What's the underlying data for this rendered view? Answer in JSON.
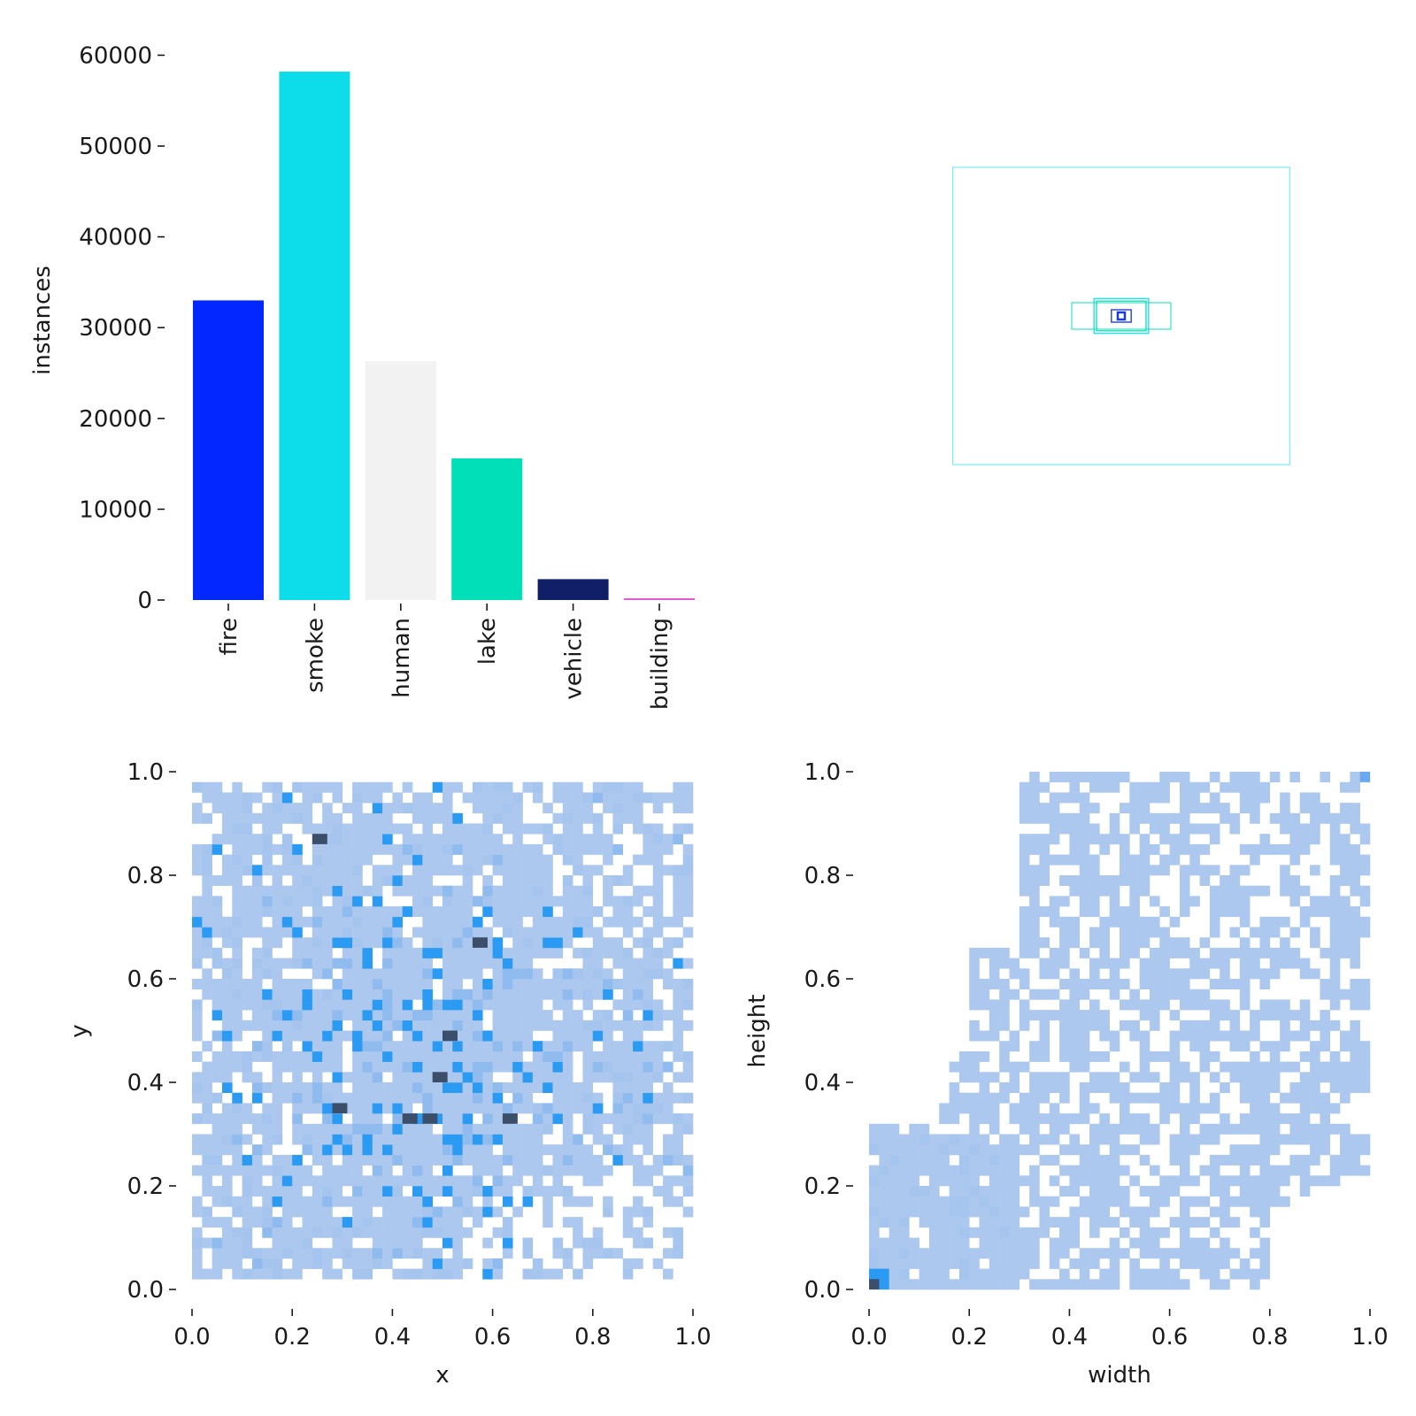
{
  "chart_data": [
    {
      "type": "bar",
      "ylabel": "instances",
      "categories": [
        "fire",
        "smoke",
        "human",
        "lake",
        "vehicle",
        "building"
      ],
      "values": [
        33000,
        58200,
        26300,
        15600,
        2300,
        150
      ],
      "colors": [
        "#0327ff",
        "#0ddcea",
        "#f2f2f2",
        "#00dfb7",
        "#111f68",
        "#e35bd4"
      ],
      "ylim": [
        0,
        62000
      ],
      "yticks": [
        0,
        10000,
        20000,
        30000,
        40000,
        50000,
        60000
      ]
    },
    {
      "type": "box-overlay",
      "description_colors": [
        "#0ddcea",
        "#00dfb7",
        "#0327ff",
        "#111f68"
      ],
      "boxes": [
        {
          "w": 0.68,
          "h": 0.6,
          "color": "#0ddcea"
        },
        {
          "w": 0.11,
          "h": 0.07,
          "color": "#0ddcea"
        },
        {
          "w": 0.1,
          "h": 0.06,
          "color": "#00dfb7"
        },
        {
          "w": 0.04,
          "h": 0.025,
          "color": "#0327ff"
        },
        {
          "w": 0.015,
          "h": 0.015,
          "color": "#111f68"
        }
      ]
    },
    {
      "type": "heatmap",
      "xlabel": "x",
      "ylabel": "y",
      "xlim": [
        0,
        1
      ],
      "ylim": [
        0,
        1
      ],
      "xticks": [
        0.0,
        0.2,
        0.4,
        0.6,
        0.8,
        1.0
      ],
      "yticks": [
        0.0,
        0.2,
        0.4,
        0.6,
        0.8,
        1.0
      ],
      "hotspots": [
        {
          "x": 0.49,
          "y": 0.4
        },
        {
          "x": 0.47,
          "y": 0.33
        },
        {
          "x": 0.56,
          "y": 0.67
        },
        {
          "x": 0.5,
          "y": 0.48
        },
        {
          "x": 0.63,
          "y": 0.32
        },
        {
          "x": 0.25,
          "y": 0.87
        },
        {
          "x": 0.28,
          "y": 0.34
        },
        {
          "x": 0.43,
          "y": 0.33
        }
      ]
    },
    {
      "type": "heatmap",
      "xlabel": "width",
      "ylabel": "height",
      "xlim": [
        0,
        1
      ],
      "ylim": [
        0,
        1
      ],
      "xticks": [
        0.0,
        0.2,
        0.4,
        0.6,
        0.8,
        1.0
      ],
      "yticks": [
        0.0,
        0.2,
        0.4,
        0.6,
        0.8,
        1.0
      ],
      "hotspots": [
        {
          "x": 0.01,
          "y": 0.01
        },
        {
          "x": 0.03,
          "y": 0.03
        }
      ]
    }
  ]
}
